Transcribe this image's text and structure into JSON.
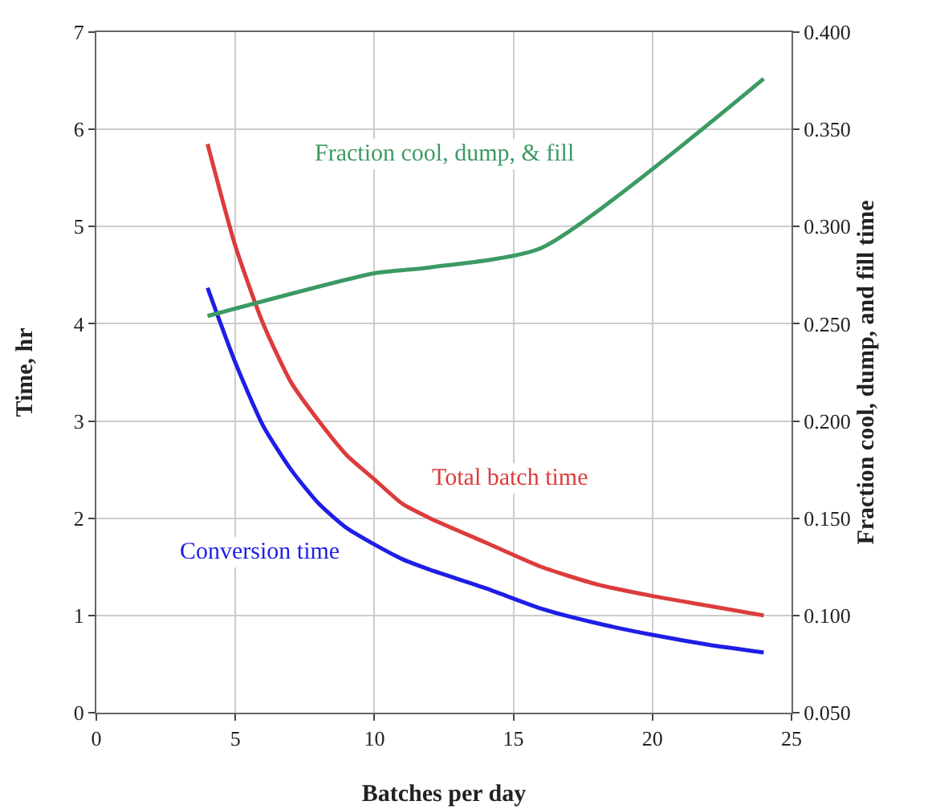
{
  "chart_data": {
    "type": "line",
    "xlabel": "Batches per day",
    "ylabel": "Time, hr",
    "y2label": "Fraction cool, dump, and fill time",
    "series": [
      {
        "name": "Fraction cool, dump, & fill",
        "color": "#3c9a64",
        "axis": "y2",
        "x": [
          4,
          10,
          12,
          16,
          24
        ],
        "values": [
          0.254,
          0.276,
          0.279,
          0.289,
          0.376
        ]
      },
      {
        "name": "Total batch time",
        "color": "#dc3c3c",
        "x": [
          4,
          5,
          6,
          7,
          8,
          9,
          10,
          11,
          12,
          14,
          16,
          18,
          20,
          22,
          24
        ],
        "values": [
          5.85,
          4.8,
          4.0,
          3.4,
          3.0,
          2.65,
          2.4,
          2.15,
          2.0,
          1.75,
          1.5,
          1.32,
          1.2,
          1.1,
          1.0
        ]
      },
      {
        "name": "Conversion time",
        "color": "#1e1ee6",
        "x": [
          4,
          5,
          6,
          7,
          8,
          9,
          10,
          11,
          12,
          14,
          16,
          18,
          20,
          22,
          24
        ],
        "values": [
          4.37,
          3.6,
          2.95,
          2.5,
          2.15,
          1.9,
          1.73,
          1.58,
          1.47,
          1.28,
          1.07,
          0.92,
          0.8,
          0.7,
          0.62
        ]
      }
    ],
    "xlim": [
      0,
      25
    ],
    "xticks": [
      0,
      5,
      10,
      15,
      20,
      25
    ],
    "ylim": [
      0,
      7
    ],
    "yticks": [
      0,
      1,
      2,
      3,
      4,
      5,
      6,
      7
    ],
    "y2lim": [
      0.05,
      0.4
    ],
    "y2ticks": [
      {
        "value": 0.05,
        "label": "0.050"
      },
      {
        "value": 0.1,
        "label": "0.100"
      },
      {
        "value": 0.15,
        "label": "0.150"
      },
      {
        "value": 0.2,
        "label": "0.200"
      },
      {
        "value": 0.25,
        "label": "0.250"
      },
      {
        "value": 0.3,
        "label": "0.300"
      },
      {
        "value": 0.35,
        "label": "0.350"
      },
      {
        "value": 0.4,
        "label": "0.400"
      }
    ],
    "grid": true,
    "legend": false,
    "marker": "none",
    "line_style": "solid"
  }
}
